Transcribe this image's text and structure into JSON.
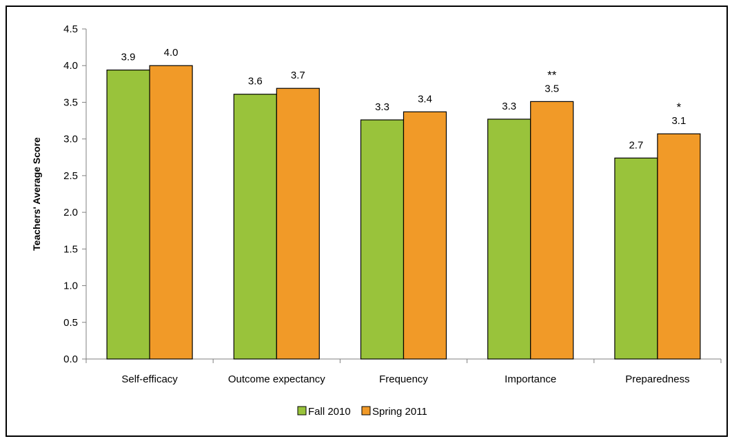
{
  "chart_data": {
    "type": "bar",
    "title": "",
    "xlabel": "",
    "ylabel": "Teachers' Average Score",
    "ylim": [
      0,
      4.5
    ],
    "ytick_step": 0.5,
    "y_tick_labels": [
      "0.0",
      "0.5",
      "1.0",
      "1.5",
      "2.0",
      "2.5",
      "3.0",
      "3.5",
      "4.0",
      "4.5"
    ],
    "categories": [
      "Self-efficacy",
      "Outcome expectancy",
      "Frequency",
      "Importance",
      "Preparedness"
    ],
    "series": [
      {
        "name": "Fall 2010",
        "color": "#99C33B",
        "values": [
          3.94,
          3.61,
          3.26,
          3.27,
          2.74
        ],
        "data_labels": [
          "3.9",
          "3.6",
          "3.3",
          "3.3",
          "2.7"
        ],
        "significance": [
          "",
          "",
          "",
          "",
          ""
        ]
      },
      {
        "name": "Spring 2011",
        "color": "#F19A28",
        "values": [
          4.0,
          3.69,
          3.37,
          3.51,
          3.07
        ],
        "data_labels": [
          "4.0",
          "3.7",
          "3.4",
          "3.5",
          "3.1"
        ],
        "significance": [
          "",
          "",
          "",
          "**",
          "*"
        ]
      }
    ],
    "grid": false,
    "legend_position": "bottom"
  }
}
